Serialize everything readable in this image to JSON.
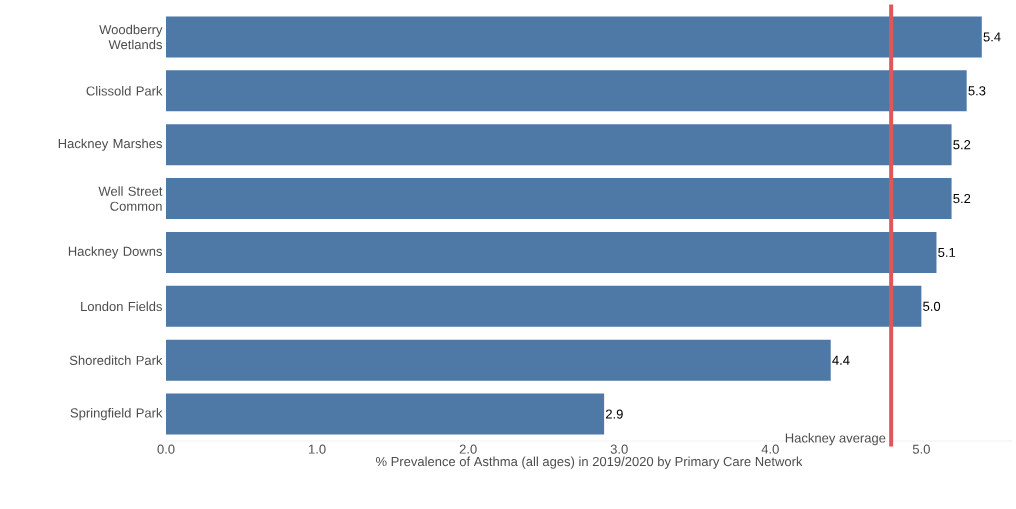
{
  "chart_data": {
    "type": "bar",
    "orientation": "horizontal",
    "xlabel": "% Prevalence of Asthma (all ages)  in 2019/2020 by Primary Care Network",
    "categories": [
      "Woodberry Wetlands",
      "Clissold Park",
      "Hackney Marshes",
      "Well Street Common",
      "Hackney Downs",
      "London Fields",
      "Shoreditch Park",
      "Springfield Park"
    ],
    "values": [
      5.4,
      5.3,
      5.2,
      5.2,
      5.1,
      5.0,
      4.4,
      2.9
    ],
    "color": "#4e79a7",
    "value_labels": [
      "5.4",
      "5.3",
      "5.2",
      "5.2",
      "5.1",
      "5.0",
      "4.4",
      "2.9"
    ],
    "xlim": [
      0,
      5.6
    ],
    "xticks": [
      {
        "value": 0,
        "label": "0.0"
      },
      {
        "value": 1,
        "label": "1.0"
      },
      {
        "value": 2,
        "label": "2.0"
      },
      {
        "value": 3,
        "label": "3.0"
      },
      {
        "value": 4,
        "label": "4.0"
      },
      {
        "value": 5,
        "label": "5.0"
      }
    ],
    "ref_lines": [
      {
        "axis": "x",
        "value": 4.8,
        "label": "Hackney average",
        "color": "#e15759"
      }
    ],
    "grid": false
  }
}
